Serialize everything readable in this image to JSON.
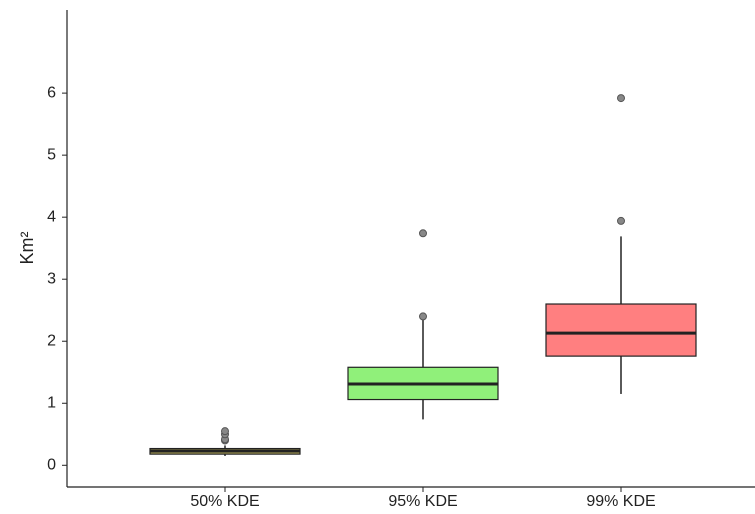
{
  "chart_data": {
    "type": "box",
    "y_label": "Km²",
    "categories": [
      "50% KDE",
      "95% KDE",
      "99% KDE"
    ],
    "colors": [
      "#b3a85a",
      "#90f07a",
      "#ff7f80"
    ],
    "boxes": [
      {
        "whisker_low": 0.15,
        "q1": 0.18,
        "median": 0.23,
        "q3": 0.27,
        "whisker_high": 0.32,
        "outliers": [
          0.4,
          0.42,
          0.5,
          0.55
        ]
      },
      {
        "whisker_low": 0.74,
        "q1": 1.06,
        "median": 1.31,
        "q3": 1.58,
        "whisker_high": 2.35,
        "outliers": [
          2.4,
          3.74
        ]
      },
      {
        "whisker_low": 1.15,
        "q1": 1.76,
        "median": 2.13,
        "q3": 2.6,
        "whisker_high": 3.69,
        "outliers": [
          3.94,
          5.92
        ]
      }
    ],
    "ylim": [
      -0.35,
      7.34
    ],
    "yticks": [
      0,
      1,
      2,
      3,
      4,
      5,
      6
    ]
  }
}
